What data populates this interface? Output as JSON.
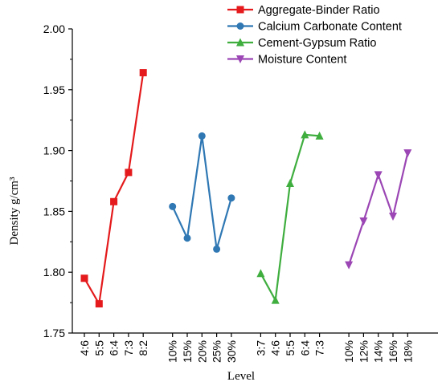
{
  "chart_data": {
    "type": "line",
    "title": "",
    "xlabel": "Level",
    "ylabel": "Density g/cm³",
    "ylim": [
      1.75,
      2.0
    ],
    "yticks": [
      "1.75",
      "1.80",
      "1.85",
      "1.90",
      "1.95",
      "2.00"
    ],
    "grid": false,
    "legend_position": "top-right",
    "series": [
      {
        "name": "Aggregate-Binder Ratio",
        "color": "#e41a1c",
        "marker": "square",
        "x": [
          "4:6",
          "5:5",
          "6:4",
          "7:3",
          "8:2"
        ],
        "y": [
          1.795,
          1.774,
          1.858,
          1.882,
          1.964
        ]
      },
      {
        "name": "Calcium Carbonate Content",
        "color": "#2f78b4",
        "marker": "circle",
        "x": [
          "10%",
          "15%",
          "20%",
          "25%",
          "30%"
        ],
        "y": [
          1.854,
          1.828,
          1.912,
          1.819,
          1.861
        ]
      },
      {
        "name": "Cement-Gypsum Ratio",
        "color": "#3fae3f",
        "marker": "triangle-up",
        "x": [
          "3:7",
          "4:6",
          "5:5",
          "6:4",
          "7:3"
        ],
        "y": [
          1.799,
          1.777,
          1.873,
          1.913,
          1.912
        ]
      },
      {
        "name": "Moisture Content",
        "color": "#9b46b4",
        "marker": "triangle-down",
        "x": [
          "10%",
          "12%",
          "14%",
          "16%",
          "18%"
        ],
        "y": [
          1.806,
          1.842,
          1.88,
          1.846,
          1.898
        ]
      }
    ]
  }
}
